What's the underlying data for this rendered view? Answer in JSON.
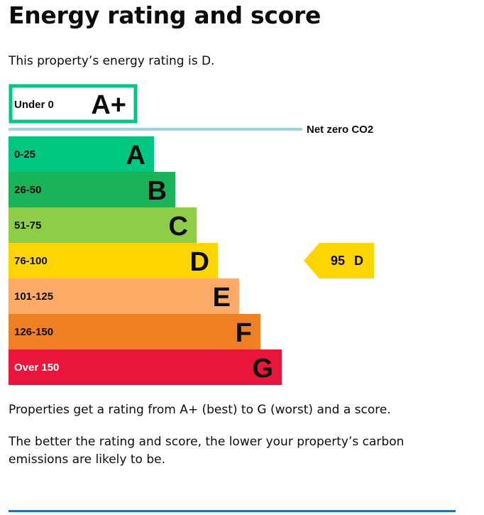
{
  "page": {
    "title": "Energy rating and score",
    "intro": "This property’s energy rating is D.",
    "note_rating": "Properties get a rating from A+ (best) to G (worst) and a score.",
    "note_carbon": "The better the rating and score, the lower your property’s carbon emissions are likely to be."
  },
  "colors": {
    "text": "#0b0c0c",
    "outline_green": "#00c781",
    "net_zero_line": "#9ed7db",
    "bottom_rule": "#1d70b8"
  },
  "chart_data": {
    "type": "bar",
    "orientation": "horizontal",
    "net_zero_label": "Net zero CO2",
    "top_band": {
      "range": "Under 0",
      "letter": "A+",
      "color": "#00c781"
    },
    "bands": [
      {
        "range": "0-25",
        "letter": "A",
        "color": "#00c781"
      },
      {
        "range": "26-50",
        "letter": "B",
        "color": "#19b459"
      },
      {
        "range": "51-75",
        "letter": "C",
        "color": "#8dce46"
      },
      {
        "range": "76-100",
        "letter": "D",
        "color": "#ffd500"
      },
      {
        "range": "101-125",
        "letter": "E",
        "color": "#fcaa65"
      },
      {
        "range": "126-150",
        "letter": "F",
        "color": "#ef8023"
      },
      {
        "range": "Over 150",
        "letter": "G",
        "color": "#e9153b"
      }
    ],
    "current": {
      "score": 95,
      "score_text": "95",
      "letter": "D",
      "color": "#ffd500"
    }
  }
}
